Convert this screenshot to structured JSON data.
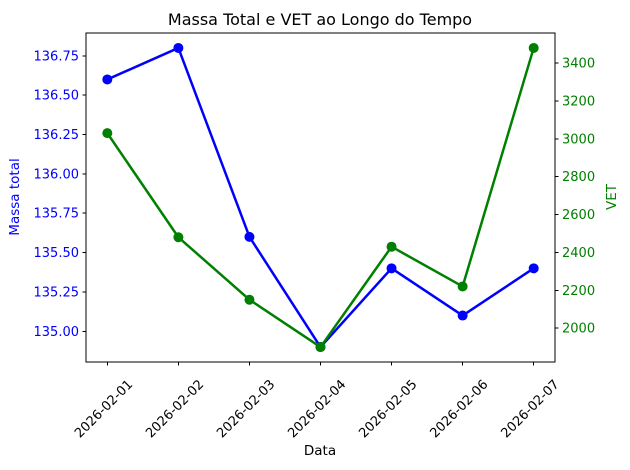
{
  "chart_data": {
    "type": "line",
    "title": "Massa Total e VET ao Longo do Tempo",
    "xlabel": "Data",
    "categories": [
      "2026-02-01",
      "2026-02-02",
      "2026-02-03",
      "2026-02-04",
      "2026-02-05",
      "2026-02-06",
      "2026-02-07"
    ],
    "x_tick_rotation": 45,
    "xlim": [
      -0.3,
      6.3
    ],
    "grid": false,
    "legend": "none",
    "series": [
      {
        "name": "Massa total",
        "axis": "left",
        "color": "#0000ff",
        "marker": "o",
        "values": [
          136.6,
          136.8,
          135.6,
          134.9,
          135.4,
          135.1,
          135.4
        ]
      },
      {
        "name": "VET",
        "axis": "right",
        "color": "#008000",
        "marker": "o",
        "values": [
          3030,
          2480,
          2150,
          1900,
          2430,
          2220,
          3480
        ]
      }
    ],
    "left_axis": {
      "label": "Massa total",
      "color": "#0000ff",
      "ylim": [
        134.805,
        136.895
      ],
      "ticks": [
        135.0,
        135.25,
        135.5,
        135.75,
        136.0,
        136.25,
        136.5,
        136.75
      ],
      "tick_labels": [
        "135.00",
        "135.25",
        "135.50",
        "135.75",
        "136.00",
        "136.25",
        "136.50",
        "136.75"
      ]
    },
    "right_axis": {
      "label": "VET",
      "color": "#008000",
      "ylim": [
        1821,
        3559
      ],
      "ticks": [
        2000,
        2200,
        2400,
        2600,
        2800,
        3000,
        3200,
        3400
      ],
      "tick_labels": [
        "2000",
        "2200",
        "2400",
        "2600",
        "2800",
        "3000",
        "3200",
        "3400"
      ]
    }
  }
}
